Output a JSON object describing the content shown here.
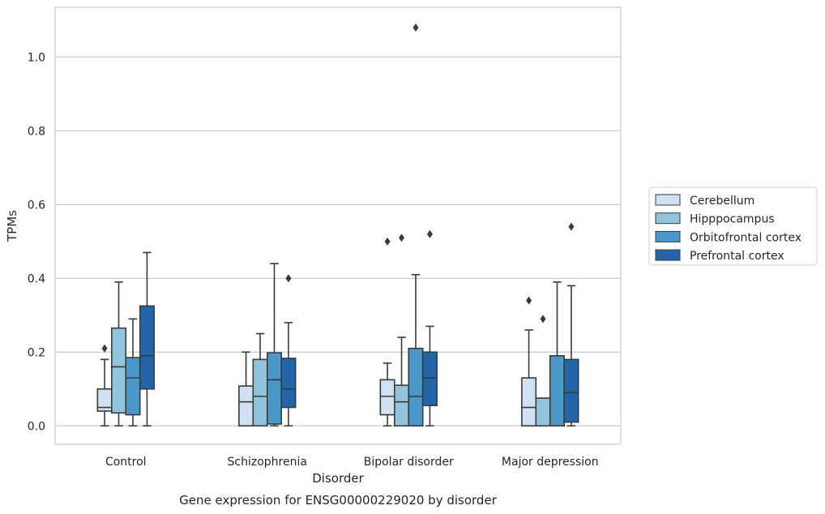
{
  "chart_data": {
    "type": "box",
    "title": "",
    "caption": "Gene expression for ENSG00000229020 by disorder",
    "xlabel": "Disorder",
    "ylabel": "TPMs",
    "ylim": [
      -0.05,
      1.135
    ],
    "yticks": [
      "0.0",
      "0.2",
      "0.4",
      "0.6",
      "0.8",
      "1.0"
    ],
    "grid": "horizontal",
    "legend_position": "right",
    "categories": [
      "Control",
      "Schizophrenia",
      "Bipolar disorder",
      "Major depression"
    ],
    "series": [
      {
        "name": "Cerebellum",
        "color": "#cfe1f2",
        "boxes": [
          {
            "whisker_low": 0.0,
            "q1": 0.04,
            "median": 0.05,
            "q3": 0.1,
            "whisker_high": 0.18,
            "outliers": [
              0.21
            ]
          },
          {
            "whisker_low": 0.0,
            "q1": 0.0,
            "median": 0.065,
            "q3": 0.108,
            "whisker_high": 0.2,
            "outliers": []
          },
          {
            "whisker_low": 0.0,
            "q1": 0.03,
            "median": 0.08,
            "q3": 0.125,
            "whisker_high": 0.17,
            "outliers": [
              0.5
            ]
          },
          {
            "whisker_low": 0.0,
            "q1": 0.0,
            "median": 0.05,
            "q3": 0.13,
            "whisker_high": 0.26,
            "outliers": [
              0.34
            ]
          }
        ]
      },
      {
        "name": "Hipppocampus",
        "color": "#93c4de",
        "boxes": [
          {
            "whisker_low": 0.0,
            "q1": 0.035,
            "median": 0.16,
            "q3": 0.265,
            "whisker_high": 0.39,
            "outliers": []
          },
          {
            "whisker_low": 0.0,
            "q1": 0.0,
            "median": 0.08,
            "q3": 0.18,
            "whisker_high": 0.25,
            "outliers": []
          },
          {
            "whisker_low": 0.0,
            "q1": 0.0,
            "median": 0.065,
            "q3": 0.11,
            "whisker_high": 0.24,
            "outliers": [
              0.51
            ]
          },
          {
            "whisker_low": 0.0,
            "q1": 0.0,
            "median": 0.0,
            "q3": 0.075,
            "whisker_high": 0.075,
            "outliers": [
              0.29
            ]
          }
        ]
      },
      {
        "name": "Orbitofrontal cortex",
        "color": "#4a98c9",
        "boxes": [
          {
            "whisker_low": 0.0,
            "q1": 0.03,
            "median": 0.13,
            "q3": 0.185,
            "whisker_high": 0.29,
            "outliers": []
          },
          {
            "whisker_low": 0.0,
            "q1": 0.005,
            "median": 0.125,
            "q3": 0.198,
            "whisker_high": 0.44,
            "outliers": []
          },
          {
            "whisker_low": 0.0,
            "q1": 0.0,
            "median": 0.08,
            "q3": 0.21,
            "whisker_high": 0.41,
            "outliers": [
              1.08
            ]
          },
          {
            "whisker_low": 0.0,
            "q1": 0.0,
            "median": 0.0,
            "q3": 0.19,
            "whisker_high": 0.39,
            "outliers": []
          }
        ]
      },
      {
        "name": "Prefrontal cortex",
        "color": "#2366a8",
        "boxes": [
          {
            "whisker_low": 0.0,
            "q1": 0.1,
            "median": 0.19,
            "q3": 0.325,
            "whisker_high": 0.47,
            "outliers": []
          },
          {
            "whisker_low": 0.0,
            "q1": 0.05,
            "median": 0.1,
            "q3": 0.183,
            "whisker_high": 0.28,
            "outliers": [
              0.4
            ]
          },
          {
            "whisker_low": 0.0,
            "q1": 0.055,
            "median": 0.13,
            "q3": 0.2,
            "whisker_high": 0.27,
            "outliers": [
              0.52
            ]
          },
          {
            "whisker_low": 0.0,
            "q1": 0.01,
            "median": 0.09,
            "q3": 0.18,
            "whisker_high": 0.38,
            "outliers": [
              0.54
            ]
          }
        ]
      }
    ]
  }
}
